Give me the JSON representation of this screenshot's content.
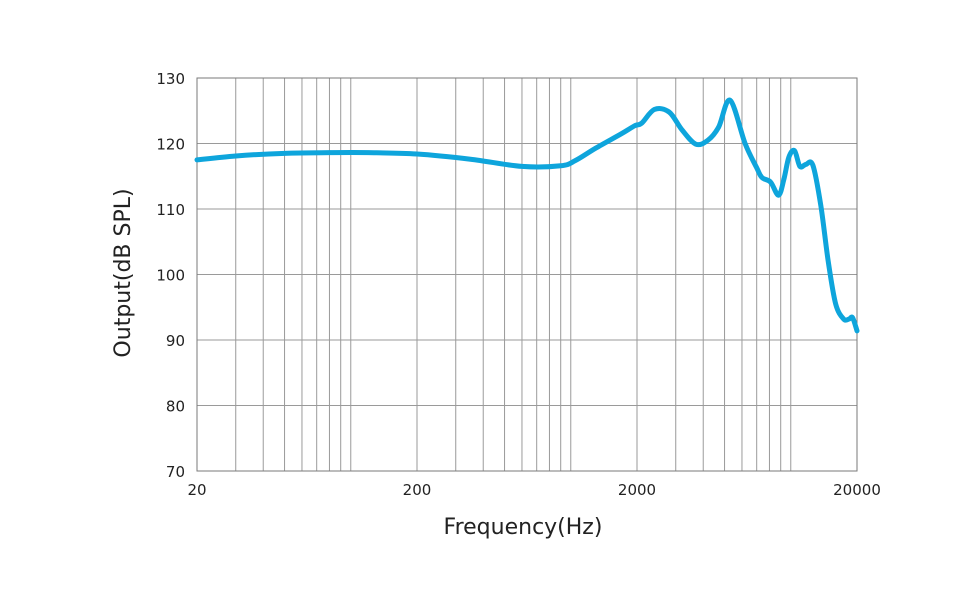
{
  "chart_data": {
    "type": "line",
    "title": "",
    "xlabel": "Frequency(Hz)",
    "ylabel": "Output(dB SPL)",
    "x_scale": "log",
    "xlim": [
      20,
      20000
    ],
    "ylim": [
      70,
      130
    ],
    "x_ticks": [
      20,
      200,
      2000,
      20000
    ],
    "x_tick_labels": [
      "20",
      "200",
      "2000",
      "20000"
    ],
    "y_ticks": [
      70,
      80,
      90,
      100,
      110,
      120,
      130
    ],
    "y_tick_labels": [
      "70",
      "80",
      "90",
      "100",
      "110",
      "120",
      "130"
    ],
    "grid": true,
    "legend": "none",
    "line_color": "#0ea5dc",
    "series": [
      {
        "x": [
          20,
          30,
          50,
          80,
          120,
          200,
          350,
          600,
          900,
          1050,
          1300,
          1700,
          1950,
          2100,
          2400,
          2800,
          3200,
          3700,
          4200,
          4700,
          5300,
          6200,
          7000,
          7400,
          8100,
          8800,
          9300,
          9800,
          10400,
          11000,
          11700,
          12600,
          13700,
          14800,
          16000,
          17400,
          18400,
          19100,
          20000
        ],
        "y": [
          117.5,
          118.1,
          118.5,
          118.6,
          118.6,
          118.4,
          117.6,
          116.5,
          116.6,
          117.4,
          119.3,
          121.5,
          122.7,
          123.1,
          125.2,
          124.8,
          122.1,
          119.9,
          120.5,
          122.5,
          126.6,
          120.0,
          116.3,
          114.8,
          114.1,
          112.1,
          114.5,
          117.9,
          118.9,
          116.5,
          116.8,
          116.7,
          110.5,
          102.0,
          95.5,
          93.2,
          93.2,
          93.4,
          91.4
        ]
      }
    ]
  }
}
